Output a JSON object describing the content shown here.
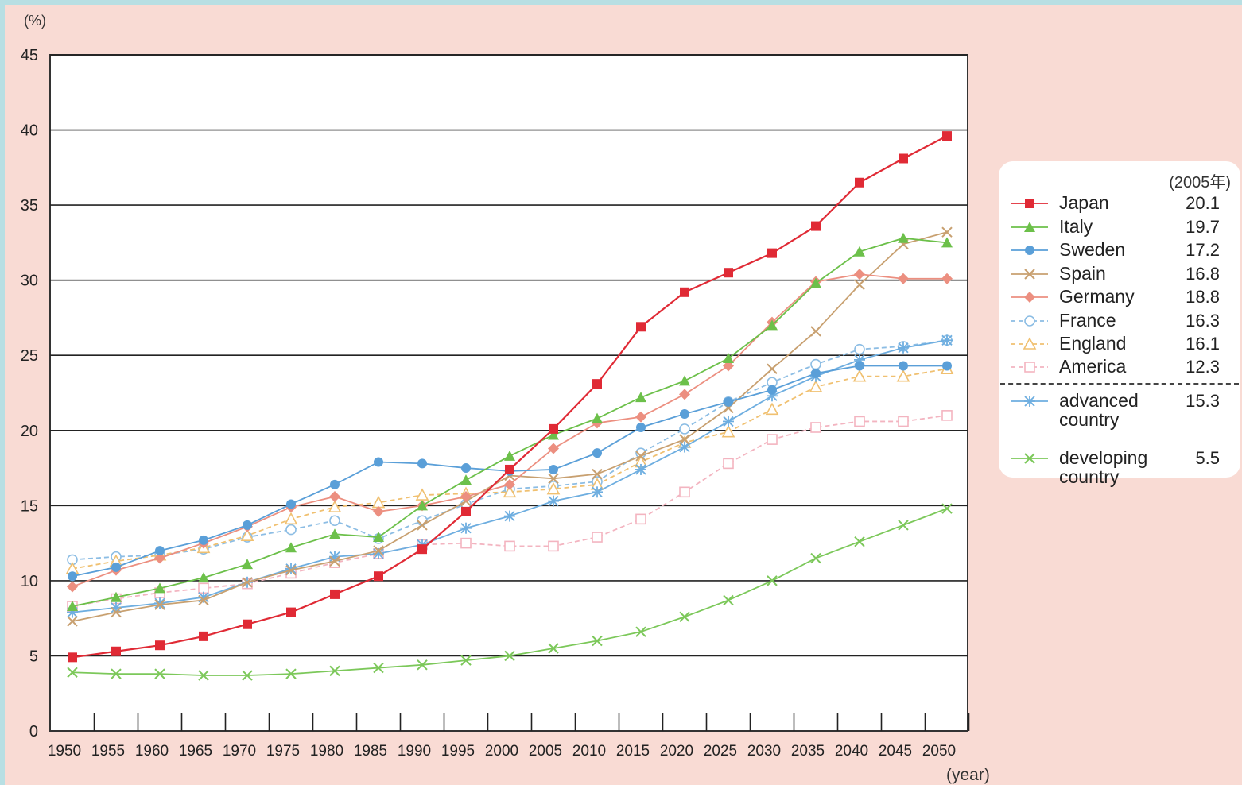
{
  "chart_data": {
    "type": "line",
    "y_unit": "(%)",
    "x_unit": "(year)",
    "ylim": [
      0,
      45
    ],
    "yticks": [
      0,
      5,
      10,
      15,
      20,
      25,
      30,
      35,
      40,
      45
    ],
    "x": [
      1950,
      1955,
      1960,
      1965,
      1970,
      1975,
      1980,
      1985,
      1990,
      1995,
      2000,
      2005,
      2010,
      2015,
      2020,
      2025,
      2030,
      2035,
      2040,
      2045,
      2050
    ],
    "grid": "horizontal",
    "legend_placement": "right",
    "legend_header": "(2005年)",
    "series": [
      {
        "name": "Japan",
        "value_2005": "20.1",
        "color": "#e02a35",
        "marker": "square-filled",
        "dash": "solid",
        "values": [
          4.9,
          5.3,
          5.7,
          6.3,
          7.1,
          7.9,
          9.1,
          10.3,
          12.1,
          14.6,
          17.4,
          20.1,
          23.1,
          26.9,
          29.2,
          30.5,
          31.8,
          33.6,
          36.5,
          38.1,
          39.6
        ]
      },
      {
        "name": "Italy",
        "value_2005": "19.7",
        "color": "#6cc04a",
        "marker": "triangle-filled",
        "dash": "solid",
        "values": [
          8.3,
          8.9,
          9.5,
          10.2,
          11.1,
          12.2,
          13.1,
          12.9,
          15.0,
          16.7,
          18.3,
          19.7,
          20.8,
          22.2,
          23.3,
          24.8,
          27.0,
          29.8,
          31.9,
          32.8,
          32.5
        ]
      },
      {
        "name": "Sweden",
        "value_2005": "17.2",
        "color": "#5a9fd8",
        "marker": "circle-filled",
        "dash": "solid",
        "values": [
          10.3,
          10.9,
          12.0,
          12.7,
          13.7,
          15.1,
          16.4,
          17.9,
          17.8,
          17.5,
          17.3,
          17.4,
          18.5,
          20.2,
          21.1,
          21.9,
          22.7,
          23.8,
          24.3,
          24.3,
          24.3
        ]
      },
      {
        "name": "Spain",
        "value_2005": "16.8",
        "color": "#c8a070",
        "marker": "cross",
        "dash": "solid",
        "values": [
          7.3,
          7.9,
          8.4,
          8.7,
          9.9,
          10.7,
          11.3,
          12.0,
          13.7,
          15.3,
          17.0,
          16.8,
          17.1,
          18.3,
          19.4,
          21.5,
          24.1,
          26.6,
          29.7,
          32.4,
          33.2
        ]
      },
      {
        "name": "Germany",
        "value_2005": "18.8",
        "color": "#ec8f80",
        "marker": "diamond-filled",
        "dash": "solid",
        "values": [
          9.6,
          10.7,
          11.5,
          12.5,
          13.6,
          14.9,
          15.6,
          14.6,
          15.0,
          15.6,
          16.4,
          18.8,
          20.5,
          20.9,
          22.4,
          24.3,
          27.2,
          29.9,
          30.4,
          30.1,
          30.1
        ]
      },
      {
        "name": "France",
        "value_2005": "16.3",
        "color": "#8cbde4",
        "marker": "circle-open",
        "dash": "dashed",
        "values": [
          11.4,
          11.6,
          11.7,
          12.1,
          12.9,
          13.4,
          14.0,
          12.8,
          14.0,
          15.1,
          16.1,
          16.3,
          16.6,
          18.5,
          20.1,
          21.9,
          23.2,
          24.4,
          25.4,
          25.6,
          26.0
        ]
      },
      {
        "name": "England",
        "value_2005": "16.1",
        "color": "#f0c070",
        "marker": "triangle-open",
        "dash": "dashed",
        "values": [
          10.8,
          11.3,
          11.7,
          12.2,
          13.0,
          14.1,
          14.9,
          15.2,
          15.7,
          15.8,
          15.9,
          16.1,
          16.4,
          17.9,
          19.2,
          19.9,
          21.4,
          22.9,
          23.6,
          23.6,
          24.1
        ]
      },
      {
        "name": "America",
        "value_2005": "12.3",
        "color": "#f3b4c0",
        "marker": "square-open",
        "dash": "dashed",
        "values": [
          8.3,
          8.8,
          9.2,
          9.5,
          9.8,
          10.5,
          11.2,
          11.8,
          12.4,
          12.5,
          12.3,
          12.3,
          12.9,
          14.1,
          15.9,
          17.8,
          19.4,
          20.2,
          20.6,
          20.6,
          21.0
        ]
      },
      {
        "name": "advanced country",
        "name_lines": [
          "advanced",
          "country"
        ],
        "value_2005": "15.3",
        "color": "#6eaee0",
        "marker": "asterisk",
        "dash": "solid",
        "values": [
          7.9,
          8.2,
          8.5,
          8.9,
          9.9,
          10.8,
          11.6,
          11.8,
          12.4,
          13.5,
          14.3,
          15.3,
          15.9,
          17.4,
          18.9,
          20.6,
          22.3,
          23.6,
          24.7,
          25.5,
          26.0
        ]
      },
      {
        "name": "developing country",
        "name_lines": [
          "developing",
          "country"
        ],
        "value_2005": "5.5",
        "color": "#7cc85a",
        "marker": "cross",
        "dash": "solid",
        "values": [
          3.9,
          3.8,
          3.8,
          3.7,
          3.7,
          3.8,
          4.0,
          4.2,
          4.4,
          4.7,
          5.0,
          5.5,
          6.0,
          6.6,
          7.6,
          8.7,
          10.0,
          11.5,
          12.6,
          13.7,
          14.8
        ]
      }
    ]
  }
}
